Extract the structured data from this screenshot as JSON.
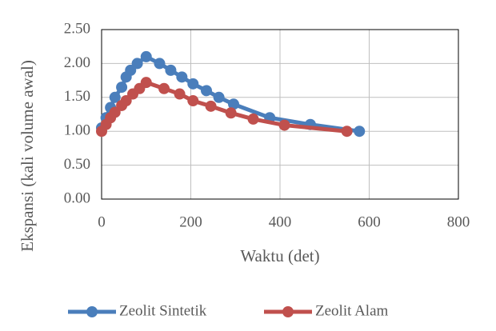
{
  "chart_data": {
    "type": "line",
    "xlabel": "Waktu (det)",
    "ylabel": "Ekspansi (kali volume awal)",
    "xlim": [
      0,
      800
    ],
    "xticks": [
      0,
      200,
      400,
      600,
      800
    ],
    "ylim": [
      0,
      2.5
    ],
    "yticks": [
      {
        "value": 0,
        "label": "0.00"
      },
      {
        "value": 0.5,
        "label": "0.50"
      },
      {
        "value": 1,
        "label": "1.00"
      },
      {
        "value": 1.5,
        "label": "1.50"
      },
      {
        "value": 2,
        "label": "2.00"
      },
      {
        "value": 2.5,
        "label": "2.50"
      }
    ],
    "grid": true,
    "legend": "bottom",
    "series": [
      {
        "name": "Zeolit Sintetik",
        "color": "#4a7ebb",
        "x": [
          0,
          10,
          20,
          30,
          45,
          55,
          65,
          80,
          100,
          130,
          155,
          180,
          205,
          235,
          263,
          296,
          377,
          468,
          578
        ],
        "values": [
          1.05,
          1.2,
          1.35,
          1.5,
          1.65,
          1.8,
          1.9,
          2.0,
          2.1,
          2.0,
          1.9,
          1.8,
          1.7,
          1.6,
          1.5,
          1.4,
          1.2,
          1.1,
          1.0
        ]
      },
      {
        "name": "Zeolit Alam",
        "color": "#c0504d",
        "x": [
          0,
          10,
          20,
          30,
          45,
          55,
          70,
          85,
          100,
          140,
          175,
          205,
          245,
          290,
          340,
          410,
          550
        ],
        "values": [
          1.0,
          1.1,
          1.2,
          1.28,
          1.38,
          1.45,
          1.55,
          1.63,
          1.72,
          1.63,
          1.55,
          1.45,
          1.37,
          1.27,
          1.18,
          1.09,
          1.0
        ]
      }
    ]
  }
}
